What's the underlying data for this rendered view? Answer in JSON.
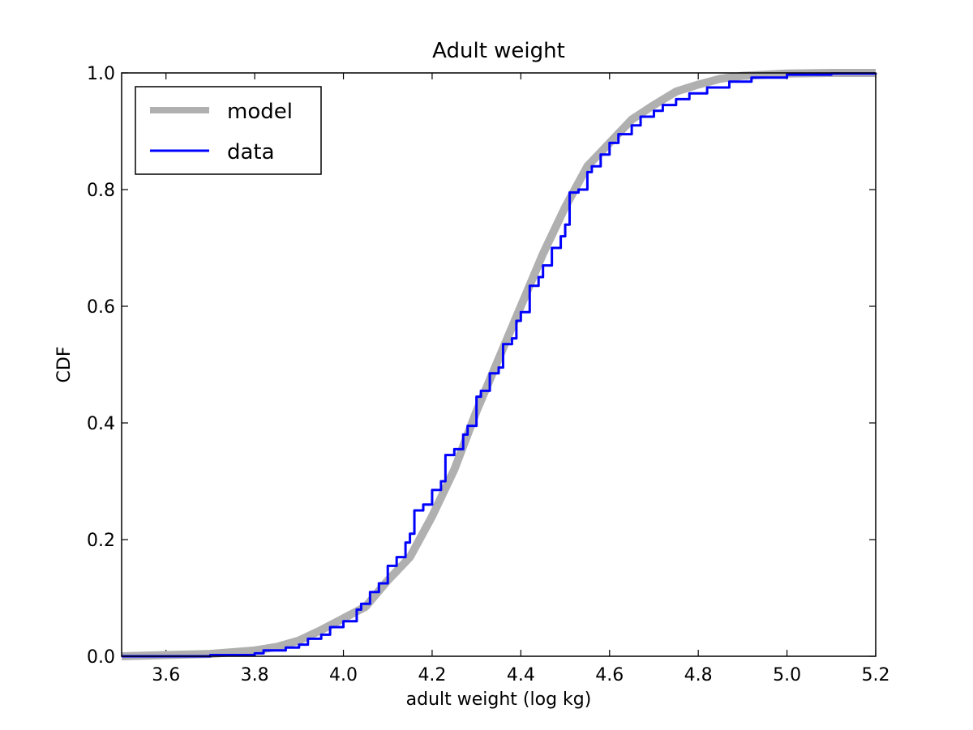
{
  "chart_data": {
    "type": "line",
    "title": "Adult weight",
    "xlabel": "adult weight (log kg)",
    "ylabel": "CDF",
    "xlim": [
      3.5,
      5.2
    ],
    "ylim": [
      0.0,
      1.0
    ],
    "xticks": [
      "3.6",
      "3.8",
      "4.0",
      "4.2",
      "4.4",
      "4.6",
      "4.8",
      "5.0",
      "5.2"
    ],
    "yticks": [
      "0.0",
      "0.2",
      "0.4",
      "0.6",
      "0.8",
      "1.0"
    ],
    "grid": false,
    "legend_position": "top-left",
    "series": [
      {
        "name": "model",
        "color": "#b0b0b0",
        "style": "smooth",
        "x": [
          3.5,
          3.6,
          3.7,
          3.8,
          3.85,
          3.9,
          3.95,
          4.0,
          4.05,
          4.1,
          4.15,
          4.2,
          4.25,
          4.3,
          4.35,
          4.4,
          4.45,
          4.5,
          4.55,
          4.6,
          4.65,
          4.7,
          4.75,
          4.8,
          4.85,
          4.9,
          5.0,
          5.1,
          5.2
        ],
        "y": [
          0.0,
          0.002,
          0.004,
          0.01,
          0.016,
          0.027,
          0.045,
          0.065,
          0.085,
          0.13,
          0.17,
          0.24,
          0.32,
          0.42,
          0.51,
          0.6,
          0.69,
          0.77,
          0.84,
          0.88,
          0.92,
          0.945,
          0.968,
          0.98,
          0.99,
          0.995,
          0.999,
          1.0,
          1.0
        ]
      },
      {
        "name": "data",
        "color": "#0000ff",
        "style": "step",
        "x": [
          3.5,
          3.7,
          3.8,
          3.82,
          3.87,
          3.9,
          3.92,
          3.95,
          3.97,
          4.0,
          4.03,
          4.04,
          4.06,
          4.08,
          4.1,
          4.12,
          4.14,
          4.15,
          4.16,
          4.18,
          4.2,
          4.22,
          4.23,
          4.25,
          4.27,
          4.28,
          4.3,
          4.31,
          4.33,
          4.35,
          4.36,
          4.38,
          4.39,
          4.4,
          4.42,
          4.44,
          4.45,
          4.47,
          4.49,
          4.5,
          4.51,
          4.53,
          4.55,
          4.56,
          4.58,
          4.6,
          4.62,
          4.65,
          4.67,
          4.7,
          4.72,
          4.75,
          4.78,
          4.82,
          4.87,
          4.92,
          5.0,
          5.1,
          5.2
        ],
        "y": [
          0.0,
          0.002,
          0.005,
          0.01,
          0.015,
          0.02,
          0.03,
          0.037,
          0.05,
          0.06,
          0.08,
          0.09,
          0.11,
          0.125,
          0.155,
          0.17,
          0.195,
          0.21,
          0.25,
          0.26,
          0.285,
          0.3,
          0.345,
          0.355,
          0.38,
          0.395,
          0.445,
          0.455,
          0.485,
          0.495,
          0.535,
          0.545,
          0.575,
          0.59,
          0.635,
          0.65,
          0.67,
          0.7,
          0.72,
          0.74,
          0.795,
          0.8,
          0.83,
          0.84,
          0.86,
          0.88,
          0.895,
          0.91,
          0.925,
          0.935,
          0.945,
          0.955,
          0.965,
          0.975,
          0.985,
          0.992,
          0.997,
          0.999,
          1.0
        ]
      }
    ]
  }
}
